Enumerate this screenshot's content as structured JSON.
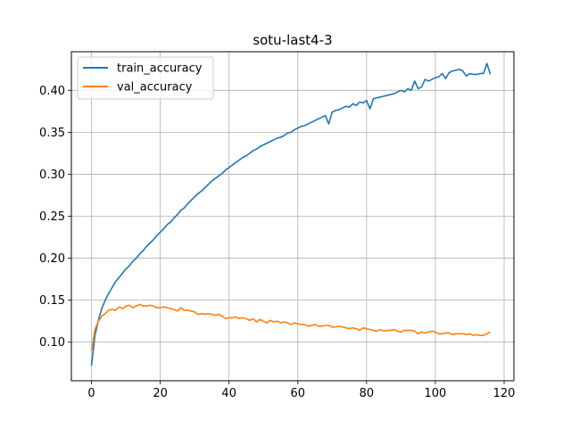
{
  "chart_data": {
    "type": "line",
    "title": "sotu-last4-3",
    "xlabel": "",
    "ylabel": "",
    "xlim": [
      -5.85,
      122.85
    ],
    "ylim": [
      0.054,
      0.446
    ],
    "xticks": [
      0,
      20,
      40,
      60,
      80,
      100,
      120
    ],
    "yticks": [
      0.1,
      0.15,
      0.2,
      0.25,
      0.3,
      0.35,
      0.4
    ],
    "xtick_labels": [
      "0",
      "20",
      "40",
      "60",
      "80",
      "100",
      "120"
    ],
    "ytick_labels": [
      "0.10",
      "0.15",
      "0.20",
      "0.25",
      "0.30",
      "0.35",
      "0.40"
    ],
    "grid": true,
    "legend_position": "top-left",
    "series": [
      {
        "name": "train_accuracy",
        "color": "#1f77b4",
        "x": [
          0,
          1,
          2,
          3,
          4,
          5,
          6,
          7,
          8,
          9,
          10,
          11,
          12,
          13,
          14,
          15,
          16,
          17,
          18,
          19,
          20,
          21,
          22,
          23,
          24,
          25,
          26,
          27,
          28,
          29,
          30,
          31,
          32,
          33,
          34,
          35,
          36,
          37,
          38,
          39,
          40,
          41,
          42,
          43,
          44,
          45,
          46,
          47,
          48,
          49,
          50,
          51,
          52,
          53,
          54,
          55,
          56,
          57,
          58,
          59,
          60,
          61,
          62,
          63,
          64,
          65,
          66,
          67,
          68,
          69,
          70,
          71,
          72,
          73,
          74,
          75,
          76,
          77,
          78,
          79,
          80,
          81,
          82,
          83,
          84,
          85,
          86,
          87,
          88,
          89,
          90,
          91,
          92,
          93,
          94,
          95,
          96,
          97,
          98,
          99,
          100,
          101,
          102,
          103,
          104,
          105,
          106,
          107,
          108,
          109,
          110,
          111,
          112,
          113,
          114,
          115,
          116
        ],
        "values": [
          0.072,
          0.108,
          0.126,
          0.14,
          0.15,
          0.158,
          0.165,
          0.172,
          0.177,
          0.182,
          0.187,
          0.191,
          0.196,
          0.2,
          0.205,
          0.209,
          0.214,
          0.218,
          0.222,
          0.227,
          0.231,
          0.235,
          0.24,
          0.243,
          0.248,
          0.252,
          0.257,
          0.26,
          0.265,
          0.269,
          0.273,
          0.277,
          0.28,
          0.284,
          0.288,
          0.292,
          0.295,
          0.298,
          0.301,
          0.305,
          0.308,
          0.311,
          0.314,
          0.317,
          0.32,
          0.322,
          0.325,
          0.328,
          0.33,
          0.333,
          0.335,
          0.337,
          0.339,
          0.341,
          0.343,
          0.344,
          0.346,
          0.349,
          0.35,
          0.353,
          0.355,
          0.357,
          0.358,
          0.36,
          0.362,
          0.364,
          0.366,
          0.368,
          0.37,
          0.36,
          0.374,
          0.376,
          0.377,
          0.379,
          0.381,
          0.38,
          0.384,
          0.382,
          0.386,
          0.385,
          0.388,
          0.378,
          0.39,
          0.391,
          0.392,
          0.393,
          0.394,
          0.395,
          0.396,
          0.398,
          0.4,
          0.398,
          0.402,
          0.4,
          0.411,
          0.402,
          0.404,
          0.413,
          0.411,
          0.413,
          0.415,
          0.416,
          0.42,
          0.414,
          0.421,
          0.423,
          0.424,
          0.425,
          0.423,
          0.417,
          0.42,
          0.419,
          0.419,
          0.42,
          0.42,
          0.432,
          0.419
        ]
      },
      {
        "name": "val_accuracy",
        "color": "#ff7f0e",
        "x": [
          0,
          1,
          2,
          3,
          4,
          5,
          6,
          7,
          8,
          9,
          10,
          11,
          12,
          13,
          14,
          15,
          16,
          17,
          18,
          19,
          20,
          21,
          22,
          23,
          24,
          25,
          26,
          27,
          28,
          29,
          30,
          31,
          32,
          33,
          34,
          35,
          36,
          37,
          38,
          39,
          40,
          41,
          42,
          43,
          44,
          45,
          46,
          47,
          48,
          49,
          50,
          51,
          52,
          53,
          54,
          55,
          56,
          57,
          58,
          59,
          60,
          61,
          62,
          63,
          64,
          65,
          66,
          67,
          68,
          69,
          70,
          71,
          72,
          73,
          74,
          75,
          76,
          77,
          78,
          79,
          80,
          81,
          82,
          83,
          84,
          85,
          86,
          87,
          88,
          89,
          90,
          91,
          92,
          93,
          94,
          95,
          96,
          97,
          98,
          99,
          100,
          101,
          102,
          103,
          104,
          105,
          106,
          107,
          108,
          109,
          110,
          111,
          112,
          113,
          114,
          115,
          116
        ],
        "values": [
          0.09,
          0.115,
          0.125,
          0.131,
          0.134,
          0.138,
          0.139,
          0.138,
          0.142,
          0.14,
          0.143,
          0.144,
          0.141,
          0.143,
          0.145,
          0.143,
          0.143,
          0.144,
          0.143,
          0.141,
          0.141,
          0.142,
          0.141,
          0.14,
          0.139,
          0.137,
          0.141,
          0.138,
          0.138,
          0.137,
          0.136,
          0.133,
          0.134,
          0.133,
          0.134,
          0.133,
          0.132,
          0.133,
          0.131,
          0.128,
          0.129,
          0.129,
          0.13,
          0.128,
          0.129,
          0.128,
          0.126,
          0.128,
          0.124,
          0.127,
          0.125,
          0.123,
          0.126,
          0.124,
          0.125,
          0.123,
          0.124,
          0.123,
          0.121,
          0.123,
          0.122,
          0.121,
          0.121,
          0.119,
          0.12,
          0.121,
          0.119,
          0.119,
          0.12,
          0.12,
          0.118,
          0.118,
          0.119,
          0.118,
          0.117,
          0.116,
          0.117,
          0.116,
          0.114,
          0.117,
          0.116,
          0.115,
          0.114,
          0.113,
          0.115,
          0.113,
          0.114,
          0.114,
          0.115,
          0.113,
          0.112,
          0.114,
          0.114,
          0.114,
          0.113,
          0.11,
          0.112,
          0.111,
          0.112,
          0.113,
          0.112,
          0.11,
          0.11,
          0.111,
          0.111,
          0.109,
          0.11,
          0.11,
          0.11,
          0.109,
          0.11,
          0.108,
          0.109,
          0.108,
          0.108,
          0.11,
          0.112
        ]
      }
    ]
  }
}
